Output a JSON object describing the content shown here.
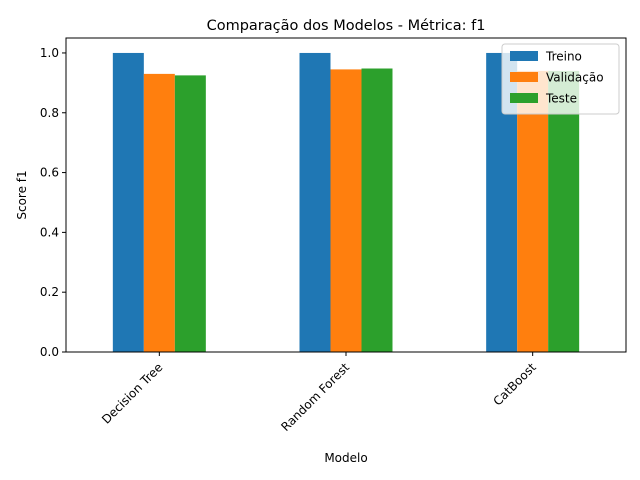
{
  "chart_data": {
    "type": "bar",
    "title": "Comparação dos Modelos - Métrica: f1",
    "xlabel": "Modelo",
    "ylabel": "Score f1",
    "categories": [
      "Decision Tree",
      "Random Forest",
      "CatBoost"
    ],
    "series": [
      {
        "name": "Treino",
        "color": "#1f77b4",
        "values": [
          1.0,
          1.0,
          1.0
        ]
      },
      {
        "name": "Validação",
        "color": "#ff7f0e",
        "values": [
          0.93,
          0.945,
          0.94
        ]
      },
      {
        "name": "Teste",
        "color": "#2ca02c",
        "values": [
          0.925,
          0.948,
          0.94
        ]
      }
    ],
    "ylim": [
      0,
      1.05
    ],
    "yticks": [
      "0.0",
      "0.2",
      "0.4",
      "0.6",
      "0.8",
      "1.0"
    ],
    "grid": false,
    "legend_position": "top-right"
  }
}
